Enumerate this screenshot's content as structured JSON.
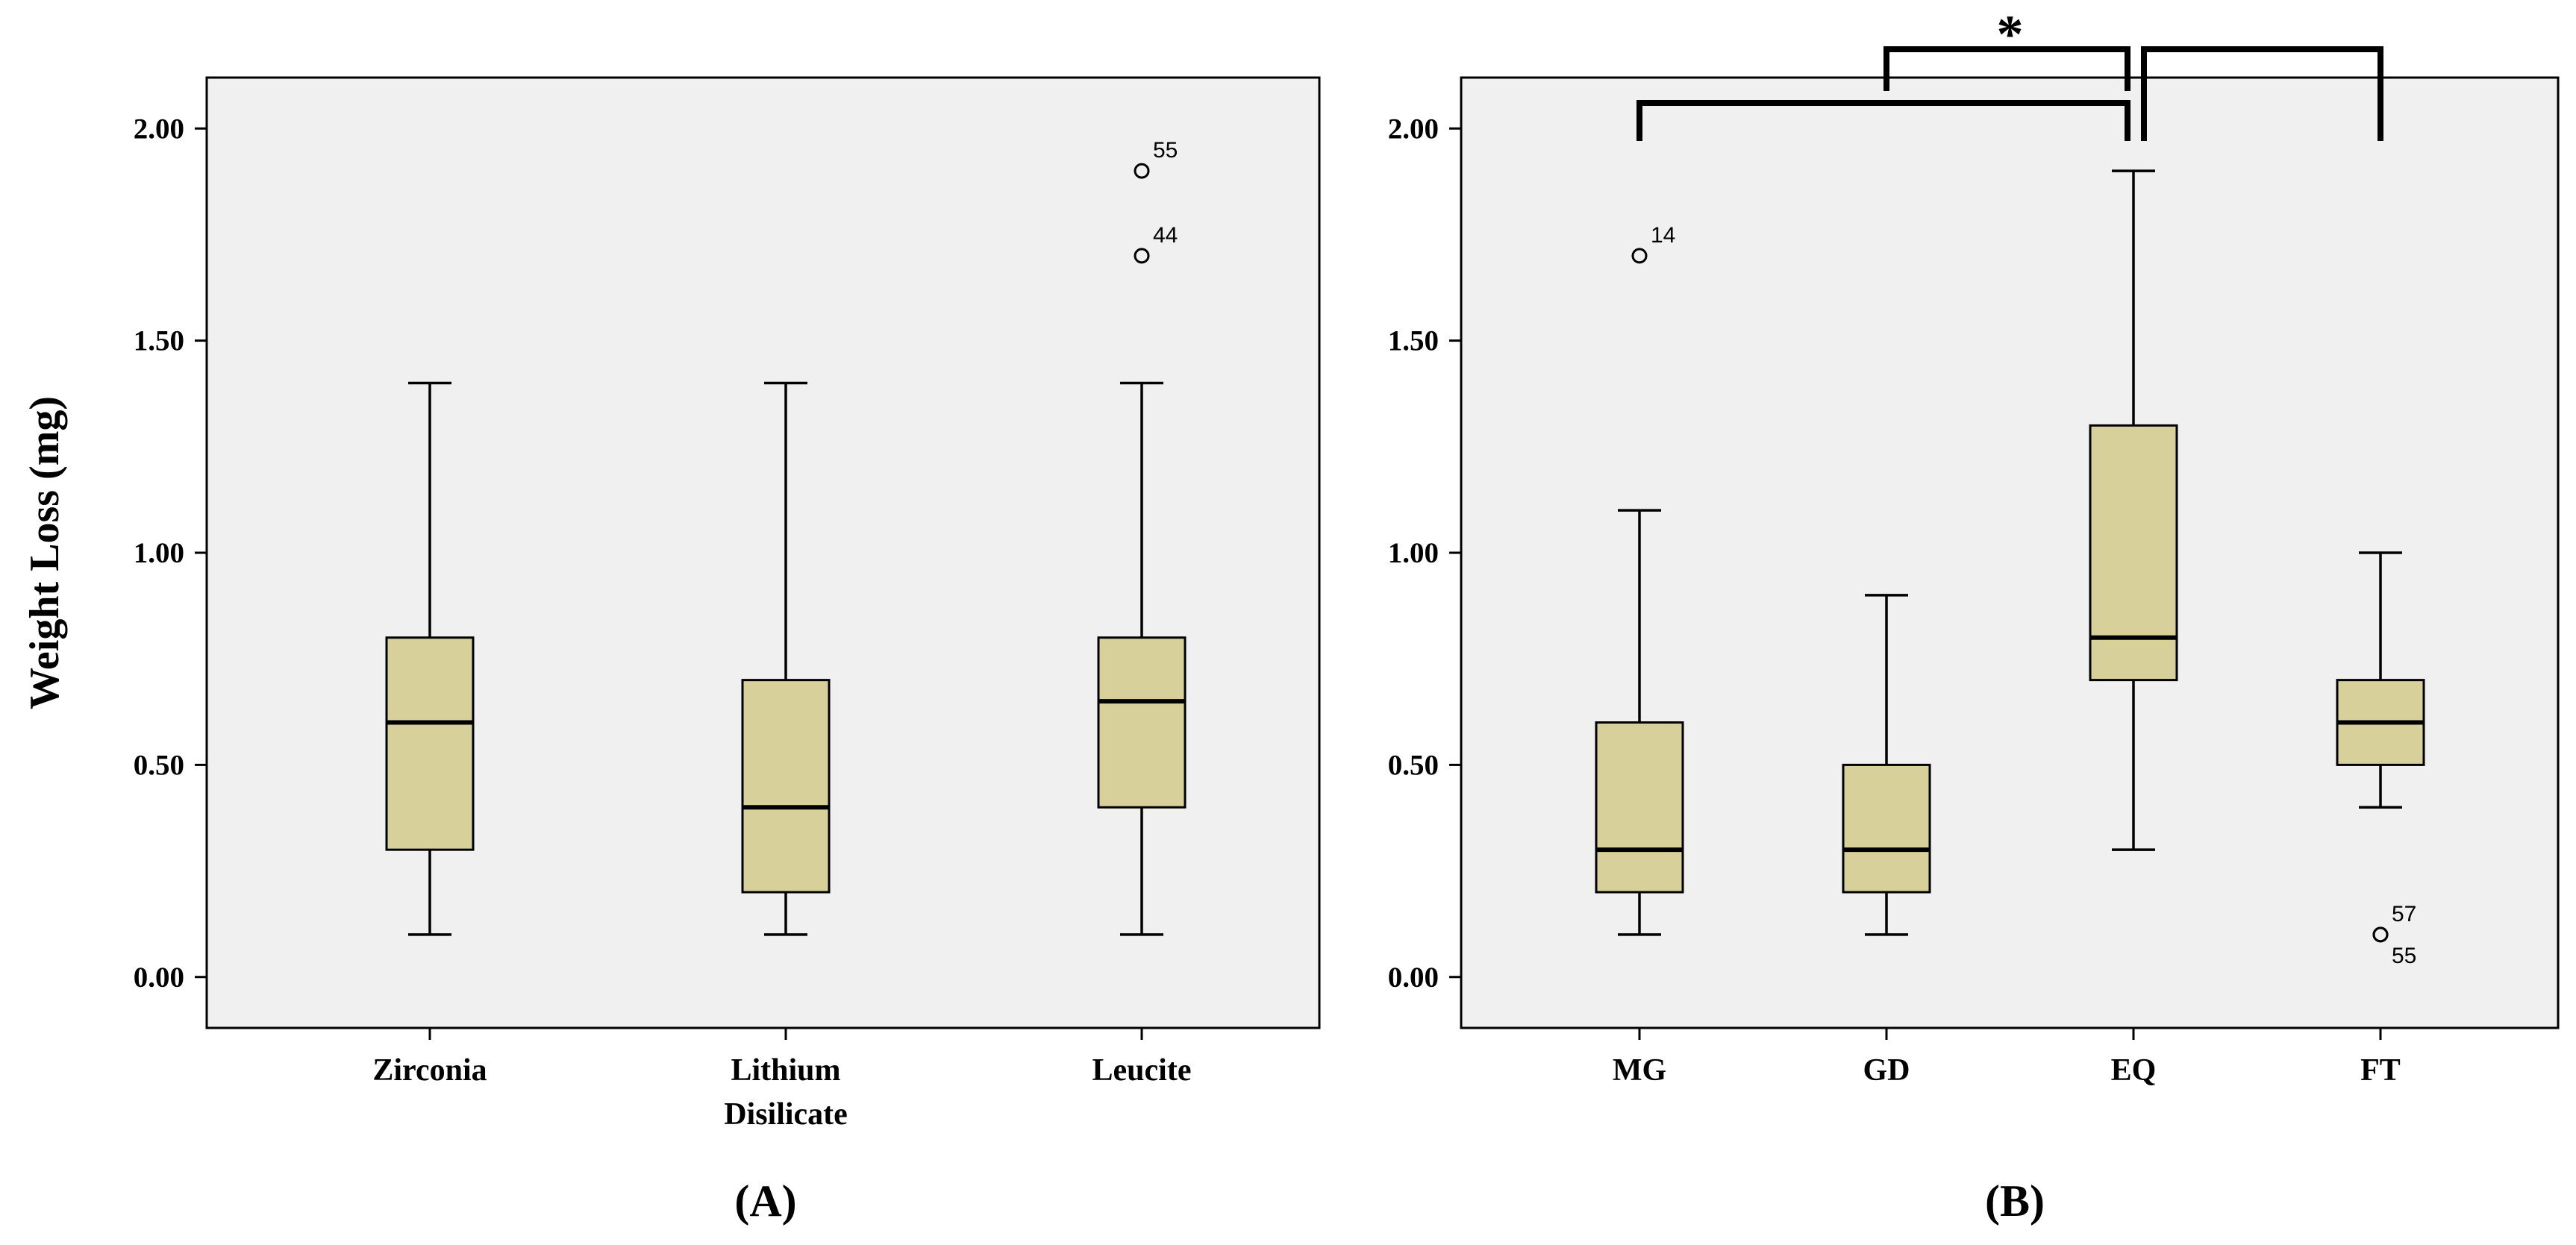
{
  "chart_data": [
    {
      "type": "boxplot",
      "panel_label": "(A)",
      "ylabel": "Weight Loss (mg)",
      "ylim": [
        -0.12,
        2.12
      ],
      "yticks": [
        "0.00",
        "0.50",
        "1.00",
        "1.50",
        "2.00"
      ],
      "ytick_values": [
        0,
        0.5,
        1.0,
        1.5,
        2.0
      ],
      "box_color": "#d8d09a",
      "background": "#f0f0f0",
      "groups": [
        {
          "label_lines": [
            "Zirconia"
          ],
          "min": 0.1,
          "q1": 0.3,
          "median": 0.6,
          "q3": 0.8,
          "max": 1.4,
          "outliers": []
        },
        {
          "label_lines": [
            "Lithium",
            "Disilicate"
          ],
          "min": 0.1,
          "q1": 0.2,
          "median": 0.4,
          "q3": 0.7,
          "max": 1.4,
          "outliers": []
        },
        {
          "label_lines": [
            "Leucite"
          ],
          "min": 0.1,
          "q1": 0.4,
          "median": 0.65,
          "q3": 0.8,
          "max": 1.4,
          "outliers": [
            {
              "value": 1.9,
              "label": "55",
              "label_pos": "above"
            },
            {
              "value": 1.7,
              "label": "44",
              "label_pos": "above"
            }
          ]
        }
      ]
    },
    {
      "type": "boxplot",
      "panel_label": "(B)",
      "ylabel": "",
      "ylim": [
        -0.12,
        2.12
      ],
      "yticks": [
        "0.00",
        "0.50",
        "1.00",
        "1.50",
        "2.00"
      ],
      "ytick_values": [
        0,
        0.5,
        1.0,
        1.5,
        2.0
      ],
      "box_color": "#d8d09a",
      "background": "#f0f0f0",
      "groups": [
        {
          "label_lines": [
            "MG"
          ],
          "min": 0.1,
          "q1": 0.2,
          "median": 0.3,
          "q3": 0.6,
          "max": 1.1,
          "outliers": [
            {
              "value": 1.7,
              "label": "14",
              "label_pos": "above"
            }
          ]
        },
        {
          "label_lines": [
            "GD"
          ],
          "min": 0.1,
          "q1": 0.2,
          "median": 0.3,
          "q3": 0.5,
          "max": 0.9,
          "outliers": []
        },
        {
          "label_lines": [
            "EQ"
          ],
          "min": 0.3,
          "q1": 0.7,
          "median": 0.8,
          "q3": 1.3,
          "max": 1.9,
          "outliers": []
        },
        {
          "label_lines": [
            "FT"
          ],
          "min": 0.4,
          "q1": 0.5,
          "median": 0.6,
          "q3": 0.7,
          "max": 1.0,
          "outliers": [
            {
              "value": 0.1,
              "label": "57",
              "label_pos": "above"
            },
            {
              "value": 0.1,
              "label": "55",
              "label_pos": "below"
            }
          ]
        }
      ],
      "significance": {
        "symbol": "*",
        "comparisons": [
          [
            "MG",
            "EQ"
          ],
          [
            "GD",
            "EQ"
          ],
          [
            "EQ",
            "FT"
          ]
        ]
      }
    }
  ]
}
